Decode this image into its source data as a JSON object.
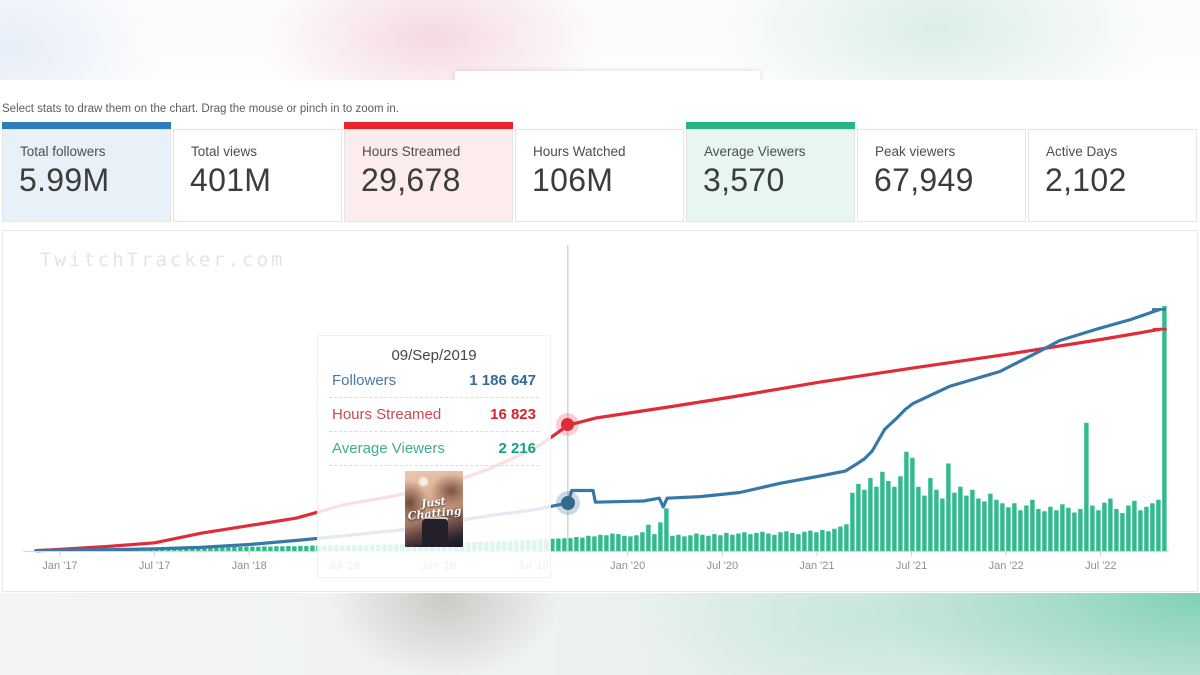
{
  "page": {
    "hint": "Select stats to draw them on the chart. Drag the mouse or pinch in to zoom in.",
    "watermark": "TwitchTracker.com"
  },
  "stats": {
    "cards": [
      {
        "label": "Total followers",
        "value": "5.99M",
        "selected": true,
        "accent": "#2d7dbe",
        "bg": "#e9f1f8"
      },
      {
        "label": "Total views",
        "value": "401M",
        "selected": false,
        "accent": null,
        "bg": "#ffffff"
      },
      {
        "label": "Hours Streamed",
        "value": "29,678",
        "selected": true,
        "accent": "#e8252f",
        "bg": "#fdecee"
      },
      {
        "label": "Hours Watched",
        "value": "106M",
        "selected": false,
        "accent": null,
        "bg": "#ffffff"
      },
      {
        "label": "Average Viewers",
        "value": "3,570",
        "selected": true,
        "accent": "#28b487",
        "bg": "#e7f6f0"
      },
      {
        "label": "Peak viewers",
        "value": "67,949",
        "selected": false,
        "accent": null,
        "bg": "#ffffff"
      },
      {
        "label": "Active Days",
        "value": "2,102",
        "selected": false,
        "accent": null,
        "bg": "#ffffff"
      }
    ]
  },
  "tooltip": {
    "date": "09/Sep/2019",
    "rows": [
      {
        "label": "Followers",
        "value": "1 186 647"
      },
      {
        "label": "Hours Streamed",
        "value": "16 823"
      },
      {
        "label": "Average Viewers",
        "value": "2 216"
      }
    ],
    "image_caption_line1": "Just",
    "image_caption_line2": "Chatting"
  },
  "chart_data": {
    "type": "composite",
    "title": "",
    "grid": false,
    "legend": "none",
    "x_axis": {
      "unit": "months since Jan 2017",
      "ticks": [
        {
          "m": 0,
          "label": "Jan '17"
        },
        {
          "m": 6,
          "label": "Jul '17"
        },
        {
          "m": 12,
          "label": "Jan '18"
        },
        {
          "m": 18,
          "label": "Jul '18"
        },
        {
          "m": 24,
          "label": "Jan '19"
        },
        {
          "m": 30,
          "label": "Jul '19"
        },
        {
          "m": 36,
          "label": "Jan '20"
        },
        {
          "m": 42,
          "label": "Jul '20"
        },
        {
          "m": 48,
          "label": "Jan '21"
        },
        {
          "m": 54,
          "label": "Jul '21"
        },
        {
          "m": 60,
          "label": "Jan '22"
        },
        {
          "m": 66,
          "label": "Jul '22"
        }
      ]
    },
    "hover": {
      "date": "09/Sep/2019",
      "month": 32.2,
      "followers": 1186647,
      "hours_streamed": 16823,
      "average_viewers": 2216
    },
    "series": [
      {
        "name": "Followers",
        "type": "line",
        "color": "#3878a8",
        "ylim": [
          0,
          6000000
        ],
        "points": [
          [
            -1.5,
            10000
          ],
          [
            0,
            22000
          ],
          [
            3.2,
            32000
          ],
          [
            6,
            52000
          ],
          [
            8.9,
            90000
          ],
          [
            12,
            160000
          ],
          [
            15.2,
            270000
          ],
          [
            18.1,
            380000
          ],
          [
            21.6,
            520000
          ],
          [
            24,
            680000
          ],
          [
            27.3,
            880000
          ],
          [
            30,
            1020000
          ],
          [
            32.2,
            1186647
          ],
          [
            32.45,
            1500000
          ],
          [
            33.8,
            1500000
          ],
          [
            33.95,
            1210000
          ],
          [
            37,
            1240000
          ],
          [
            38,
            1310000
          ],
          [
            38.25,
            1090000
          ],
          [
            38.5,
            1310000
          ],
          [
            40.6,
            1350000
          ],
          [
            43.1,
            1450000
          ],
          [
            45.7,
            1680000
          ],
          [
            48.2,
            1860000
          ],
          [
            49.8,
            1980000
          ],
          [
            50.6,
            2180000
          ],
          [
            51,
            2280000
          ],
          [
            51.5,
            2480000
          ],
          [
            52.3,
            3020000
          ],
          [
            53,
            3270000
          ],
          [
            53.6,
            3510000
          ],
          [
            54.1,
            3660000
          ],
          [
            56.4,
            4080000
          ],
          [
            59.6,
            4450000
          ],
          [
            62.1,
            4950000
          ],
          [
            63.4,
            5220000
          ],
          [
            65.9,
            5520000
          ],
          [
            67.9,
            5740000
          ],
          [
            69.75,
            5990000
          ]
        ]
      },
      {
        "name": "Hours Streamed",
        "type": "line",
        "color": "#e02b39",
        "ylim": [
          0,
          29700
        ],
        "points": [
          [
            -1.5,
            60
          ],
          [
            0,
            220
          ],
          [
            3,
            600
          ],
          [
            6,
            1100
          ],
          [
            9,
            2400
          ],
          [
            12,
            3400
          ],
          [
            15,
            4400
          ],
          [
            16.5,
            5300
          ],
          [
            18,
            6200
          ],
          [
            21,
            7300
          ],
          [
            24,
            8600
          ],
          [
            27,
            10800
          ],
          [
            30,
            13600
          ],
          [
            31,
            15000
          ],
          [
            32.2,
            16823
          ],
          [
            34,
            17800
          ],
          [
            36.5,
            18600
          ],
          [
            39,
            19400
          ],
          [
            42.6,
            20600
          ],
          [
            48.2,
            22600
          ],
          [
            54.1,
            24500
          ],
          [
            60,
            26300
          ],
          [
            66,
            28300
          ],
          [
            69.8,
            29678
          ]
        ]
      },
      {
        "name": "Average Viewers",
        "type": "bars",
        "color": "#31bb8b",
        "ylim": [
          0,
          42000
        ],
        "start_month": -1.5,
        "month_step": 0.3805,
        "values": [
          250,
          300,
          280,
          350,
          320,
          380,
          350,
          400,
          380,
          420,
          400,
          450,
          430,
          480,
          460,
          500,
          480,
          520,
          500,
          550,
          530,
          560,
          540,
          580,
          560,
          600,
          620,
          590,
          640,
          620,
          660,
          680,
          650,
          700,
          680,
          720,
          750,
          720,
          780,
          760,
          820,
          800,
          850,
          830,
          880,
          860,
          920,
          900,
          950,
          930,
          980,
          960,
          1000,
          980,
          1050,
          1020,
          1100,
          1080,
          1150,
          1120,
          1200,
          1180,
          1250,
          1220,
          1300,
          1280,
          1350,
          1320,
          1400,
          1380,
          1450,
          1500,
          1480,
          1550,
          1600,
          1580,
          1650,
          1700,
          1680,
          1750,
          1800,
          1850,
          1900,
          1950,
          2000,
          2050,
          2100,
          2150,
          2200,
          2216,
          2400,
          2300,
          2600,
          2500,
          2800,
          2700,
          3000,
          2900,
          2600,
          2500,
          2700,
          3200,
          4500,
          2900,
          4900,
          7300,
          2600,
          2800,
          2500,
          2700,
          3000,
          2800,
          2600,
          2900,
          2700,
          3100,
          2800,
          3000,
          3200,
          2900,
          3100,
          3300,
          3000,
          2800,
          3200,
          3400,
          3100,
          2900,
          3300,
          3500,
          3200,
          3600,
          3400,
          3800,
          4200,
          4600,
          10000,
          11500,
          10500,
          12500,
          11000,
          13600,
          12000,
          11000,
          12800,
          17000,
          16000,
          11000,
          9500,
          12500,
          10500,
          9000,
          15000,
          10000,
          11000,
          9500,
          10500,
          9000,
          8500,
          9800,
          8800,
          8200,
          7500,
          8200,
          7000,
          7800,
          8800,
          7200,
          6800,
          7600,
          7000,
          8000,
          7400,
          6600,
          7200,
          22000,
          7800,
          7000,
          8300,
          9000,
          7200,
          6500,
          7800,
          8600,
          7000,
          7600,
          8200,
          8800,
          42000
        ]
      }
    ]
  }
}
